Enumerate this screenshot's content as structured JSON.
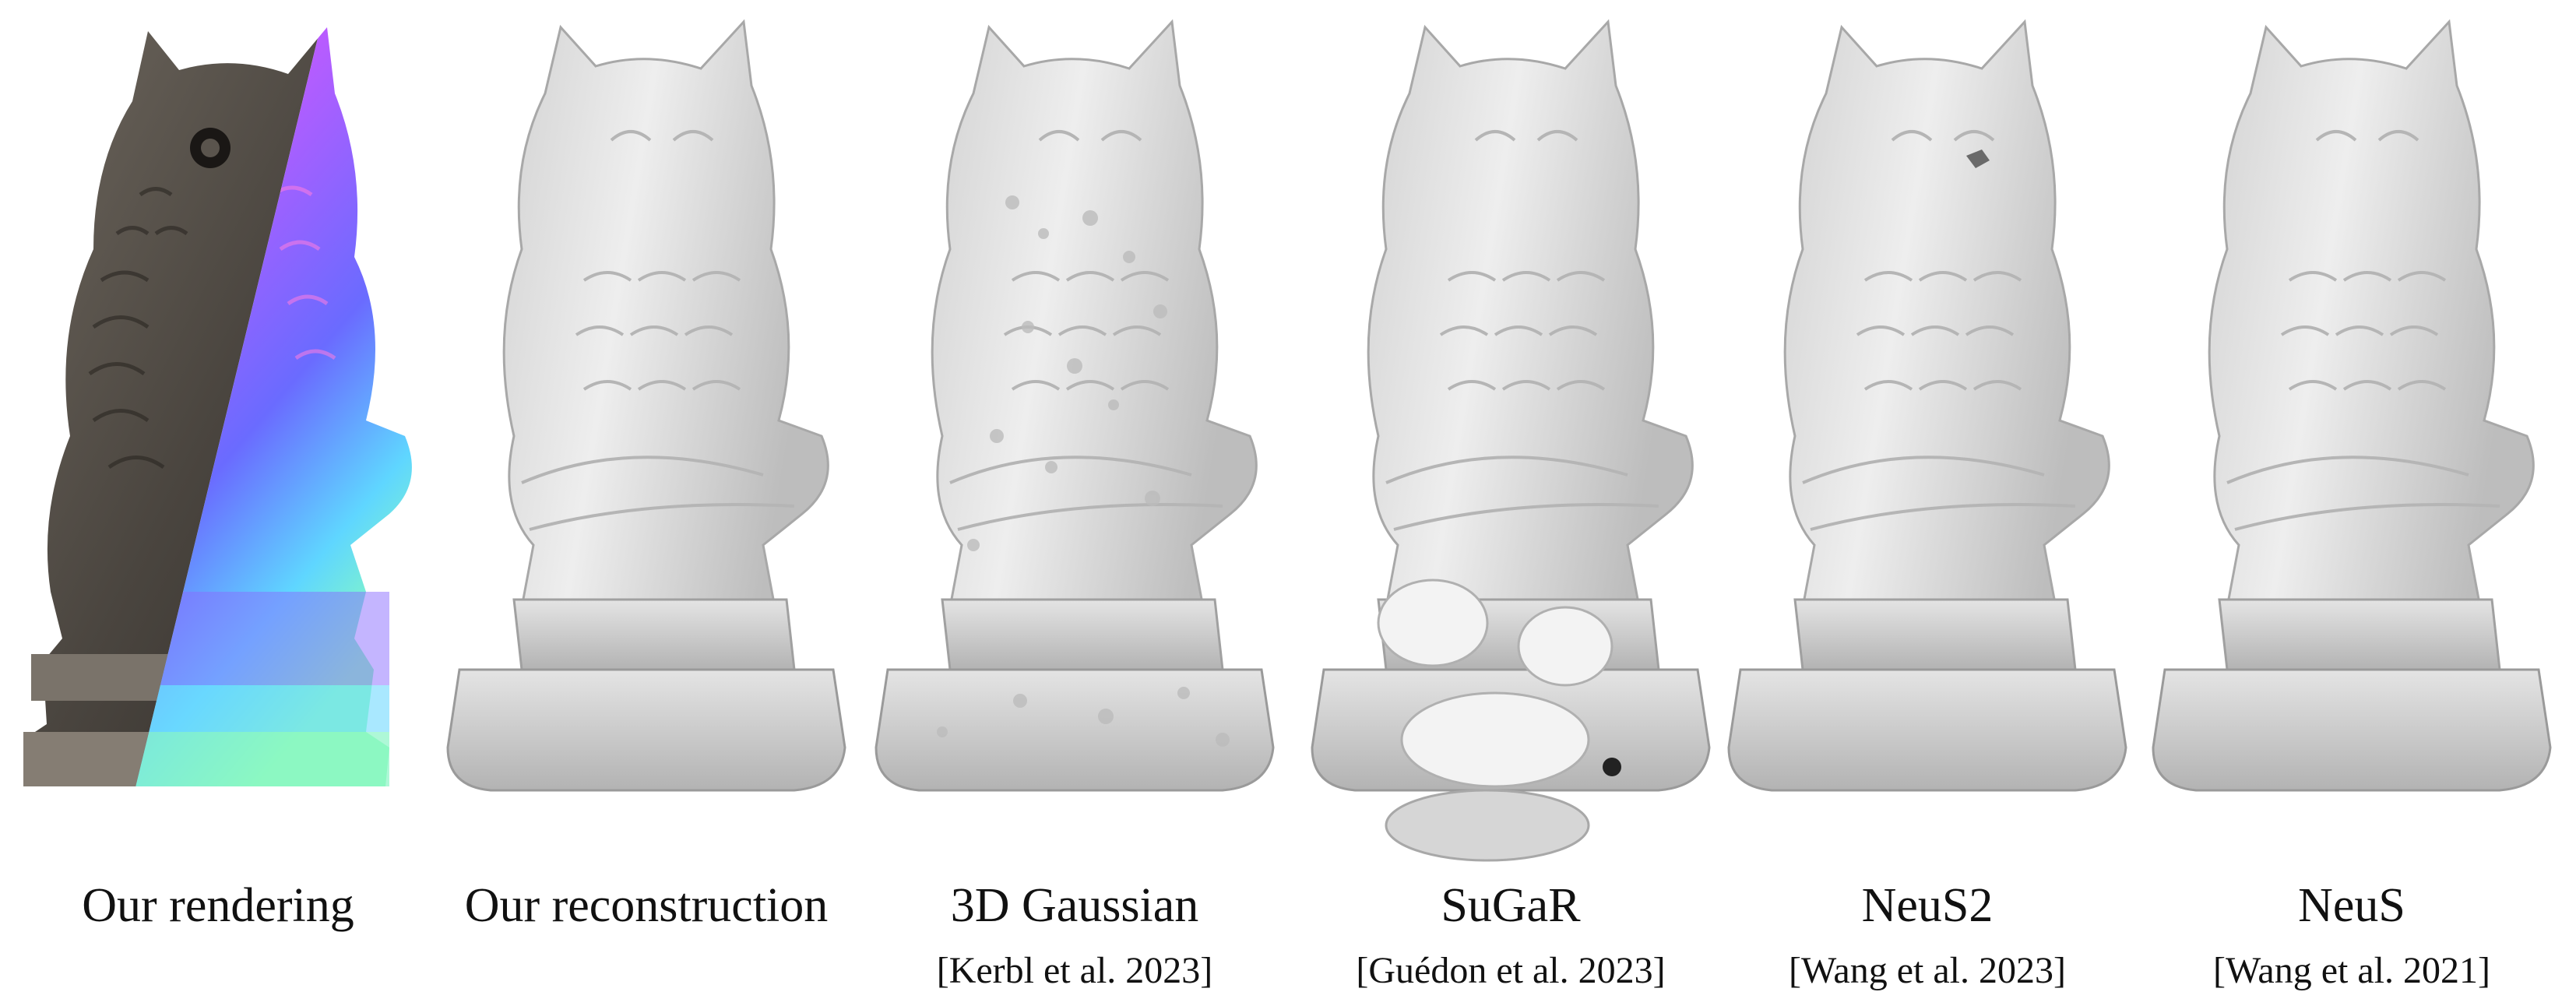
{
  "figure": {
    "panels": [
      {
        "id": "rendering",
        "title": "Our rendering",
        "citation": "",
        "style": "photo-normal"
      },
      {
        "id": "reconstruction",
        "title": "Our reconstruction",
        "citation": "",
        "style": "smooth-mesh"
      },
      {
        "id": "gaussian",
        "title": "3D Gaussian",
        "citation": "[Kerbl et al. 2023]",
        "style": "noisy-mesh"
      },
      {
        "id": "sugar",
        "title": "SuGaR",
        "citation": "[Guédon et al. 2023]",
        "style": "blobby-mesh"
      },
      {
        "id": "neus2",
        "title": "NeuS2",
        "citation": "[Wang et al. 2023]",
        "style": "smooth-mesh"
      },
      {
        "id": "neus",
        "title": "NeuS",
        "citation": "[Wang et al. 2021]",
        "style": "smooth-mesh"
      }
    ],
    "colors": {
      "mesh_light": "#ececec",
      "mesh_mid": "#c9c9c9",
      "mesh_dark": "#8f8f8f",
      "photo_dark": "#3e3a35",
      "photo_light": "#8c8378",
      "normal_pink": "#ff5fd0",
      "normal_purple": "#7b5cff",
      "normal_cyan": "#5fe6ff",
      "normal_green": "#8cffb8"
    }
  }
}
